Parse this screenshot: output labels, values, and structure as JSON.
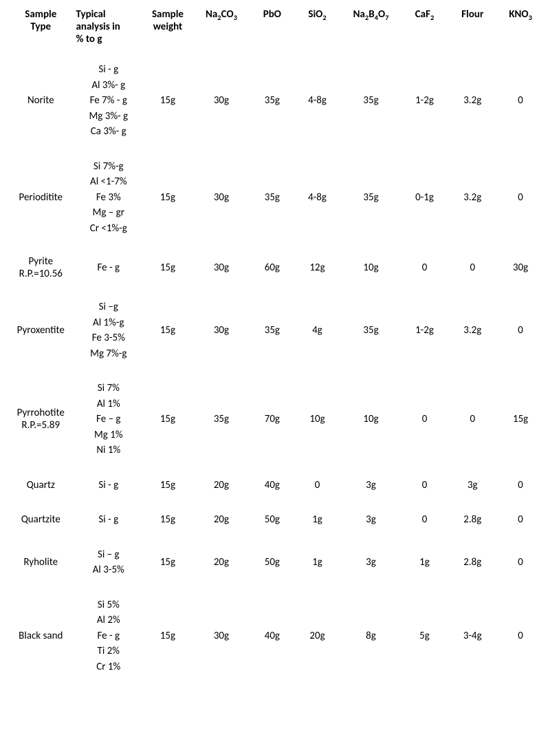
{
  "table": {
    "background_color": "#ffffff",
    "text_color": "#000000",
    "font_family": "Calibri, Arial, sans-serif",
    "font_size_pt": 11,
    "headers": {
      "sample_type": "Sample Type",
      "typical_analysis": "Typical analysis in % to g",
      "sample_weight": "Sample weight",
      "na2co3": "Na2CO3",
      "pbo": "PbO",
      "sio2": "SiO2",
      "na2b4o7": "Na2B4O7",
      "caf2": "CaF2",
      "flour": "Flour",
      "kno3": "KNO3"
    },
    "rows": [
      {
        "sample_type": [
          "Norite"
        ],
        "analysis": [
          "Si - g",
          "Al 3%- g",
          "Fe 7% - g",
          "Mg 3%- g",
          "Ca 3%- g"
        ],
        "weight": "15g",
        "na2co3": "30g",
        "pbo": "35g",
        "sio2": "4-8g",
        "na2b4o7": "35g",
        "caf2": "1-2g",
        "flour": "3.2g",
        "kno3": "0"
      },
      {
        "sample_type": [
          "Perioditite"
        ],
        "analysis": [
          "Si 7%-g",
          "Al <1-7%",
          "Fe 3%",
          "Mg – gr",
          "Cr <1%-g"
        ],
        "weight": "15g",
        "na2co3": "30g",
        "pbo": "35g",
        "sio2": "4-8g",
        "na2b4o7": "35g",
        "caf2": "0-1g",
        "flour": "3.2g",
        "kno3": "0"
      },
      {
        "sample_type": [
          "Pyrite",
          "R.P.=10.56"
        ],
        "analysis": [
          "Fe - g"
        ],
        "weight": "15g",
        "na2co3": "30g",
        "pbo": "60g",
        "sio2": "12g",
        "na2b4o7": "10g",
        "caf2": "0",
        "flour": "0",
        "kno3": "30g"
      },
      {
        "sample_type": [
          "Pyroxentite"
        ],
        "analysis": [
          "Si –g",
          "Al 1%-g",
          "Fe 3-5%",
          "Mg 7%-g",
          " "
        ],
        "weight": "15g",
        "na2co3": "30g",
        "pbo": "35g",
        "sio2": "4g",
        "na2b4o7": "35g",
        "caf2": "1-2g",
        "flour": "3.2g",
        "kno3": "0"
      },
      {
        "sample_type": [
          "Pyrrohotite",
          "R.P.=5.89"
        ],
        "analysis": [
          "Si 7%",
          "Al 1%",
          "Fe – g",
          "Mg 1%",
          "Ni 1%"
        ],
        "weight": "15g",
        "na2co3": "35g",
        "pbo": "70g",
        "sio2": "10g",
        "na2b4o7": "10g",
        "caf2": "0",
        "flour": "0",
        "kno3": "15g"
      },
      {
        "sample_type": [
          "Quartz"
        ],
        "analysis": [
          "Si - g"
        ],
        "weight": "15g",
        "na2co3": "20g",
        "pbo": "40g",
        "sio2": "0",
        "na2b4o7": "3g",
        "caf2": "0",
        "flour": "3g",
        "kno3": "0"
      },
      {
        "sample_type": [
          "Quartzite"
        ],
        "analysis": [
          "Si - g"
        ],
        "weight": "15g",
        "na2co3": "20g",
        "pbo": "50g",
        "sio2": "1g",
        "na2b4o7": "3g",
        "caf2": "0",
        "flour": "2.8g",
        "kno3": "0"
      },
      {
        "sample_type": [
          "Ryholite"
        ],
        "analysis": [
          "Si – g",
          "Al 3-5%"
        ],
        "weight": "15g",
        "na2co3": "20g",
        "pbo": "50g",
        "sio2": "1g",
        "na2b4o7": "3g",
        "caf2": "1g",
        "flour": "2.8g",
        "kno3": "0"
      },
      {
        "sample_type": [
          "Black sand"
        ],
        "analysis": [
          "Si 5%",
          "Al 2%",
          "Fe - g",
          "Ti 2%",
          "Cr  1%"
        ],
        "weight": "15g",
        "na2co3": "30g",
        "pbo": "40g",
        "sio2": "20g",
        "na2b4o7": "8g",
        "caf2": "5g",
        "flour": "3-4g",
        "kno3": "0"
      }
    ]
  }
}
